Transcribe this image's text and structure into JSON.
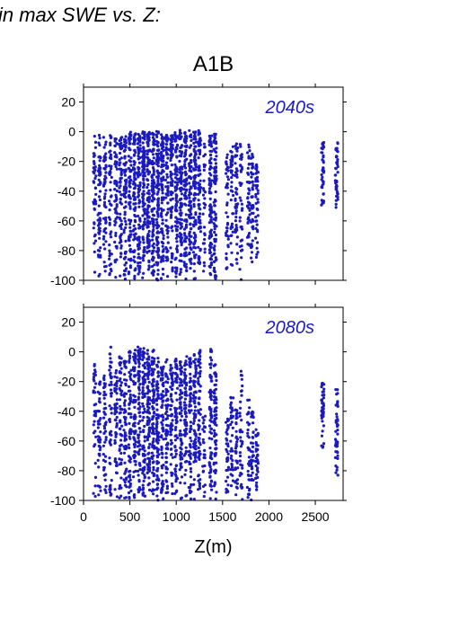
{
  "heading": "in max SWE vs. Z:",
  "title": "A1B",
  "colors": {
    "points": "#1a1abf",
    "axis": "#000000"
  },
  "chart_data": {
    "type": "scatter",
    "title": "A1B",
    "xlabel": "Z(m)",
    "ylabel": "",
    "xlim": [
      0,
      2800
    ],
    "ylim": [
      -100,
      30
    ],
    "x_ticks": [
      "0",
      "500",
      "1000",
      "1500",
      "2000",
      "2500"
    ],
    "x_tick_values": [
      0,
      500,
      1000,
      1500,
      2000,
      2500
    ],
    "y_ticks": [
      "20",
      "0",
      "-20",
      "-40",
      "-60",
      "-80",
      "-100"
    ],
    "y_tick_values": [
      20,
      0,
      -20,
      -40,
      -60,
      -80,
      -100
    ],
    "grid": false,
    "panels": [
      {
        "label": "2040s",
        "series": [
          {
            "columns": [
              {
                "x": 120,
                "ymin": -100,
                "ymax": -1,
                "density": 14
              },
              {
                "x": 170,
                "ymin": -100,
                "ymax": -2,
                "density": 18
              },
              {
                "x": 230,
                "ymin": -100,
                "ymax": -2,
                "density": 18
              },
              {
                "x": 290,
                "ymin": -100,
                "ymax": -2,
                "density": 16
              },
              {
                "x": 350,
                "ymin": -100,
                "ymax": -2,
                "density": 20
              },
              {
                "x": 400,
                "ymin": -100,
                "ymax": -3,
                "density": 22
              },
              {
                "x": 450,
                "ymin": -100,
                "ymax": -1,
                "density": 24
              },
              {
                "x": 500,
                "ymin": -100,
                "ymax": 0,
                "density": 26
              },
              {
                "x": 550,
                "ymin": -100,
                "ymax": 1,
                "density": 28
              },
              {
                "x": 600,
                "ymin": -100,
                "ymax": 1,
                "density": 30
              },
              {
                "x": 650,
                "ymin": -100,
                "ymax": 0,
                "density": 34
              },
              {
                "x": 700,
                "ymin": -100,
                "ymax": 1,
                "density": 36
              },
              {
                "x": 750,
                "ymin": -100,
                "ymax": 0,
                "density": 36
              },
              {
                "x": 800,
                "ymin": -100,
                "ymax": 1,
                "density": 34
              },
              {
                "x": 850,
                "ymin": -100,
                "ymax": -1,
                "density": 30
              },
              {
                "x": 900,
                "ymin": -100,
                "ymax": -2,
                "density": 22
              },
              {
                "x": 950,
                "ymin": -100,
                "ymax": -1,
                "density": 24
              },
              {
                "x": 1000,
                "ymin": -100,
                "ymax": 0,
                "density": 30
              },
              {
                "x": 1050,
                "ymin": -100,
                "ymax": 1,
                "density": 32
              },
              {
                "x": 1100,
                "ymin": -100,
                "ymax": 1,
                "density": 30
              },
              {
                "x": 1150,
                "ymin": -100,
                "ymax": 1,
                "density": 26
              },
              {
                "x": 1200,
                "ymin": -100,
                "ymax": 0,
                "density": 28
              },
              {
                "x": 1250,
                "ymin": -100,
                "ymax": 1,
                "density": 26
              },
              {
                "x": 1300,
                "ymin": -100,
                "ymax": -3,
                "density": 10
              },
              {
                "x": 1370,
                "ymin": -100,
                "ymax": -1,
                "density": 30
              },
              {
                "x": 1420,
                "ymin": -100,
                "ymax": -1,
                "density": 30
              },
              {
                "x": 1550,
                "ymin": -97,
                "ymax": -15,
                "density": 14
              },
              {
                "x": 1600,
                "ymin": -92,
                "ymax": -10,
                "density": 14
              },
              {
                "x": 1650,
                "ymin": -90,
                "ymax": -8,
                "density": 16
              },
              {
                "x": 1700,
                "ymin": -100,
                "ymax": -5,
                "density": 12
              },
              {
                "x": 1780,
                "ymin": -82,
                "ymax": -7,
                "density": 14
              },
              {
                "x": 1820,
                "ymin": -90,
                "ymax": -15,
                "density": 16
              },
              {
                "x": 1870,
                "ymin": -90,
                "ymax": -20,
                "density": 14
              },
              {
                "x": 2580,
                "ymin": -52,
                "ymax": -6,
                "density": 14
              },
              {
                "x": 2730,
                "ymin": -52,
                "ymax": -7,
                "density": 14
              }
            ]
          }
        ]
      },
      {
        "label": "2080s",
        "series": [
          {
            "columns": [
              {
                "x": 120,
                "ymin": -100,
                "ymax": -7,
                "density": 12
              },
              {
                "x": 170,
                "ymin": -100,
                "ymax": -18,
                "density": 14
              },
              {
                "x": 230,
                "ymin": -100,
                "ymax": -15,
                "density": 16
              },
              {
                "x": 290,
                "ymin": -100,
                "ymax": 4,
                "density": 16
              },
              {
                "x": 350,
                "ymin": -100,
                "ymax": -10,
                "density": 18
              },
              {
                "x": 400,
                "ymin": -100,
                "ymax": -3,
                "density": 20
              },
              {
                "x": 450,
                "ymin": -100,
                "ymax": -5,
                "density": 20
              },
              {
                "x": 500,
                "ymin": -100,
                "ymax": 1,
                "density": 22
              },
              {
                "x": 550,
                "ymin": -100,
                "ymax": 3,
                "density": 24
              },
              {
                "x": 600,
                "ymin": -100,
                "ymax": 4,
                "density": 26
              },
              {
                "x": 650,
                "ymin": -100,
                "ymax": 3,
                "density": 28
              },
              {
                "x": 700,
                "ymin": -100,
                "ymax": 2,
                "density": 30
              },
              {
                "x": 750,
                "ymin": -100,
                "ymax": 2,
                "density": 30
              },
              {
                "x": 800,
                "ymin": -100,
                "ymax": -3,
                "density": 28
              },
              {
                "x": 850,
                "ymin": -100,
                "ymax": -7,
                "density": 24
              },
              {
                "x": 900,
                "ymin": -100,
                "ymax": -5,
                "density": 20
              },
              {
                "x": 950,
                "ymin": -100,
                "ymax": -8,
                "density": 20
              },
              {
                "x": 1000,
                "ymin": -100,
                "ymax": -4,
                "density": 22
              },
              {
                "x": 1050,
                "ymin": -100,
                "ymax": -5,
                "density": 24
              },
              {
                "x": 1100,
                "ymin": -100,
                "ymax": -3,
                "density": 24
              },
              {
                "x": 1150,
                "ymin": -100,
                "ymax": -4,
                "density": 22
              },
              {
                "x": 1200,
                "ymin": -100,
                "ymax": -1,
                "density": 24
              },
              {
                "x": 1250,
                "ymin": -100,
                "ymax": 1,
                "density": 22
              },
              {
                "x": 1300,
                "ymin": -100,
                "ymax": -40,
                "density": 8
              },
              {
                "x": 1370,
                "ymin": -100,
                "ymax": 2,
                "density": 24
              },
              {
                "x": 1420,
                "ymin": -100,
                "ymax": -8,
                "density": 24
              },
              {
                "x": 1550,
                "ymin": -97,
                "ymax": -45,
                "density": 12
              },
              {
                "x": 1600,
                "ymin": -92,
                "ymax": -30,
                "density": 12
              },
              {
                "x": 1650,
                "ymin": -100,
                "ymax": -38,
                "density": 12
              },
              {
                "x": 1700,
                "ymin": -100,
                "ymax": -12,
                "density": 12
              },
              {
                "x": 1780,
                "ymin": -100,
                "ymax": -32,
                "density": 12
              },
              {
                "x": 1820,
                "ymin": -100,
                "ymax": -40,
                "density": 12
              },
              {
                "x": 1870,
                "ymin": -100,
                "ymax": -52,
                "density": 12
              },
              {
                "x": 2580,
                "ymin": -66,
                "ymax": -20,
                "density": 14
              },
              {
                "x": 2730,
                "ymin": -84,
                "ymax": -24,
                "density": 14
              }
            ]
          }
        ]
      }
    ]
  }
}
